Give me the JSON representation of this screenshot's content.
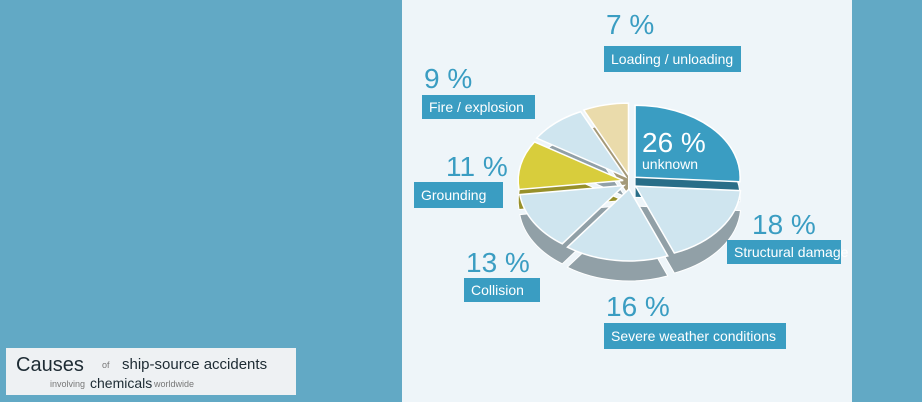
{
  "chart_data": {
    "type": "pie",
    "title_parts": [
      "Causes",
      "of",
      "ship-source accidents",
      "involving",
      "chemicals",
      "worldwide"
    ],
    "categories": [
      "unknown",
      "Structural damage",
      "Severe weather conditions",
      "Collision",
      "Grounding",
      "Fire / explosion",
      "Loading / unloading"
    ],
    "values": [
      26,
      18,
      16,
      13,
      11,
      9,
      7
    ],
    "value_labels": [
      "26 %",
      "18 %",
      "16 %",
      "13 %",
      "11 %",
      "9 %",
      "7 %"
    ],
    "colors": [
      "#3a9dc2",
      "#cfe5ef",
      "#cfe5ef",
      "#cfe5ef",
      "#d8cd3c",
      "#cfe5ef",
      "#eadbab"
    ]
  }
}
